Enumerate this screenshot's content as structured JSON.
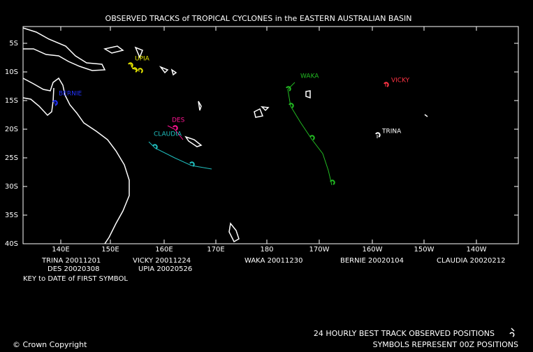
{
  "title": "OBSERVED TRACKS of TROPICAL CYCLONES in the EASTERN AUSTRALIAN BASIN",
  "lat_labels": [
    "5S",
    "10S",
    "15S",
    "20S",
    "25S",
    "30S",
    "35S",
    "40S"
  ],
  "lon_labels": [
    "140E",
    "150E",
    "160E",
    "170E",
    "180",
    "170W",
    "160W",
    "150W",
    "140W"
  ],
  "storms": [
    {
      "name": "UPIA",
      "color": "#e6e600"
    },
    {
      "name": "BERNIE",
      "color": "#2233ff"
    },
    {
      "name": "DES",
      "color": "#ff1493"
    },
    {
      "name": "CLAUDIA",
      "color": "#20c0c0"
    },
    {
      "name": "WAKA",
      "color": "#22bb22"
    },
    {
      "name": "VICKY",
      "color": "#ff3344"
    },
    {
      "name": "TRINA",
      "color": "#ffffff"
    }
  ],
  "key": [
    "TRINA 20011201",
    "DES 20020308",
    "VICKY 20011224",
    "UPIA 20020526",
    "WAKA 20011230",
    "BERNIE 20020104",
    "CLAUDIA 20020212"
  ],
  "key_caption": "KEY to DATE of FIRST SYMBOL",
  "legend": [
    "24 HOURLY BEST TRACK OBSERVED POSITIONS",
    "SYMBOLS REPRESENT 00Z POSITIONS"
  ],
  "copyright": "© Crown Copyright"
}
